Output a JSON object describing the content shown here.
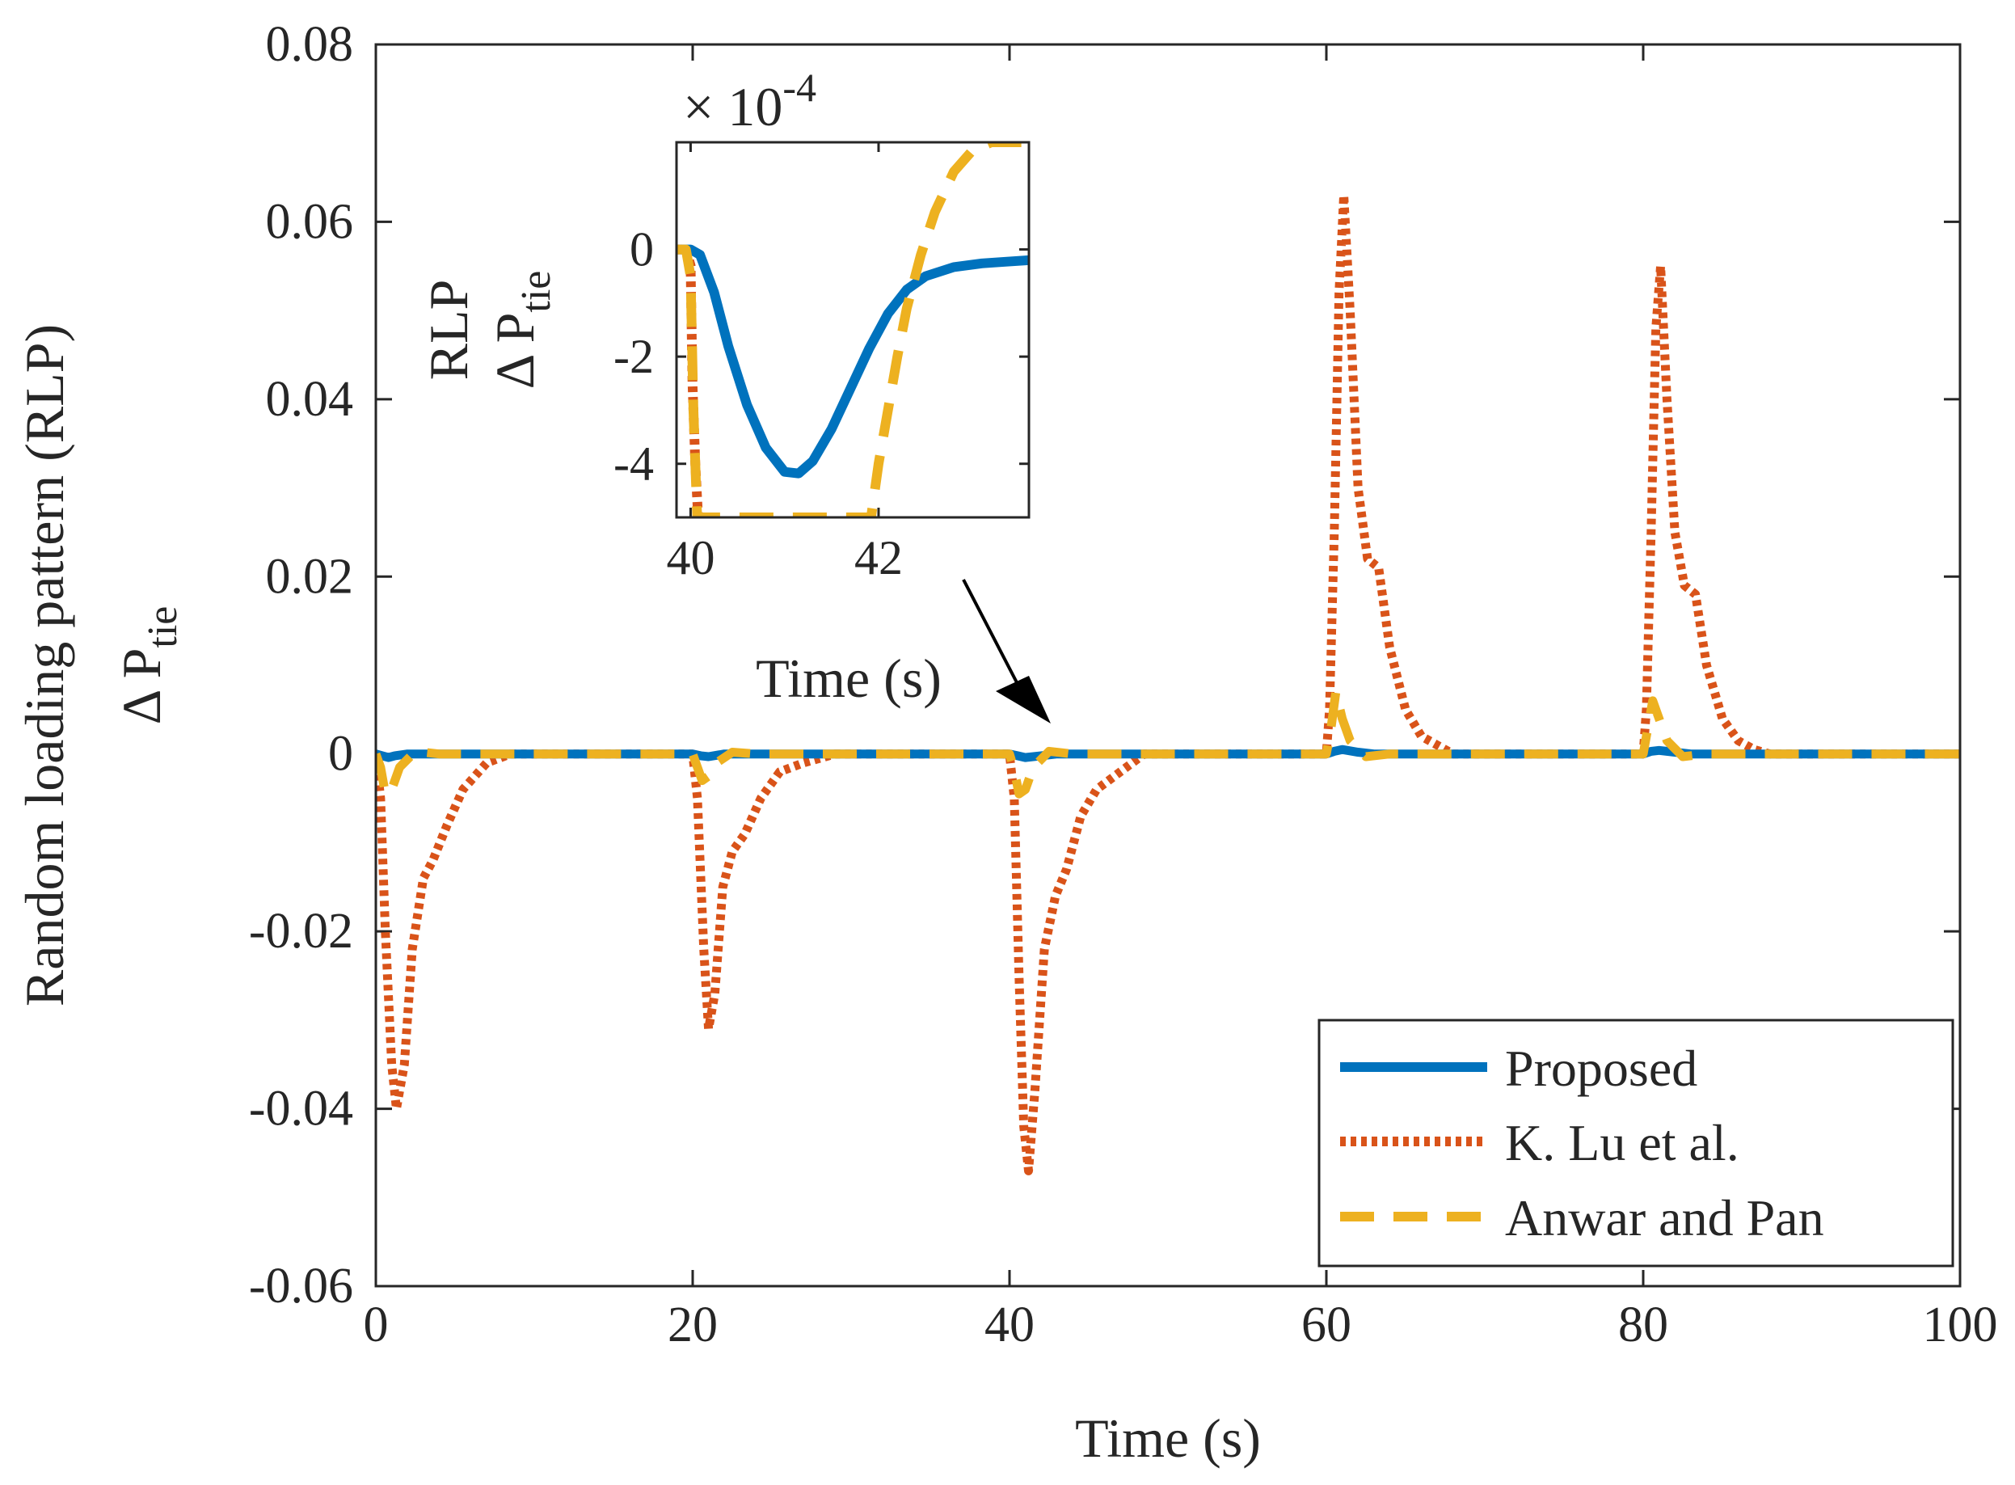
{
  "chart_data": [
    {
      "id": "main",
      "type": "line",
      "title": "",
      "xlabel": "Time (s)",
      "ylabel_line1": "Random loading pattern (RLP)",
      "ylabel_line2": "Δ P",
      "ylabel_sub": "tie",
      "xlim": [
        0,
        100
      ],
      "ylim": [
        -0.06,
        0.08
      ],
      "xticks": [
        0,
        20,
        40,
        60,
        80,
        100
      ],
      "xtick_labels": [
        "0",
        "20",
        "40",
        "60",
        "80",
        "100"
      ],
      "yticks": [
        -0.06,
        -0.04,
        -0.02,
        0,
        0.02,
        0.04,
        0.06,
        0.08
      ],
      "ytick_labels": [
        "-0.06",
        "-0.04",
        "-0.02",
        "0",
        "0.02",
        "0.04",
        "0.06",
        "0.08"
      ],
      "grid": false,
      "legend": {
        "position": "bottom-right",
        "entries": [
          "Proposed",
          "K. Lu et al.",
          "Anwar and Pan"
        ]
      },
      "series": [
        {
          "name": "Proposed",
          "color": "#0072BD",
          "style": "solid",
          "x": [
            0,
            0.4,
            0.8,
            1.2,
            2,
            3,
            20,
            20.5,
            21,
            22,
            40,
            40.5,
            41,
            42,
            43,
            60,
            60.5,
            61,
            62,
            63,
            80,
            80.5,
            81,
            82,
            83,
            100
          ],
          "y": [
            0,
            -0.0002,
            -0.0004,
            -0.0002,
            0,
            0,
            0,
            -0.0002,
            -0.0003,
            0,
            0,
            -0.0002,
            -0.0004,
            -0.0002,
            0,
            0,
            0.0003,
            0.0005,
            0.0002,
            0,
            0,
            0.0003,
            0.0004,
            0.0002,
            0,
            0
          ]
        },
        {
          "name": "K. Lu et al.",
          "color": "#D95319",
          "style": "dotted",
          "x": [
            0,
            0.3,
            0.6,
            1,
            1.3,
            1.8,
            2.3,
            3,
            3.6,
            4.5,
            5.5,
            7,
            8.5,
            20,
            20.3,
            20.7,
            21,
            21.4,
            21.9,
            22.5,
            23.3,
            24.3,
            25.5,
            27,
            29,
            40,
            40.3,
            40.6,
            40.9,
            41.2,
            41.6,
            42.2,
            42.9,
            43.6,
            44.5,
            45.5,
            47,
            48.5,
            50,
            60,
            60.2,
            60.5,
            60.8,
            61.1,
            61.5,
            62,
            62.6,
            63.3,
            64,
            65,
            66,
            67,
            68,
            80,
            80.2,
            80.5,
            80.8,
            81.1,
            81.5,
            82,
            82.6,
            83.3,
            84,
            85,
            86,
            87,
            88,
            100
          ],
          "y": [
            0,
            -0.005,
            -0.02,
            -0.035,
            -0.04,
            -0.035,
            -0.022,
            -0.014,
            -0.012,
            -0.008,
            -0.004,
            -0.001,
            0,
            0,
            -0.005,
            -0.022,
            -0.031,
            -0.027,
            -0.015,
            -0.011,
            -0.009,
            -0.005,
            -0.002,
            -0.001,
            0,
            0,
            -0.005,
            -0.025,
            -0.042,
            -0.047,
            -0.038,
            -0.022,
            -0.016,
            -0.013,
            -0.007,
            -0.004,
            -0.002,
            0,
            0,
            0,
            0.005,
            0.025,
            0.052,
            0.063,
            0.05,
            0.03,
            0.022,
            0.021,
            0.012,
            0.005,
            0.002,
            0.001,
            0,
            0,
            0.005,
            0.025,
            0.048,
            0.055,
            0.04,
            0.025,
            0.019,
            0.018,
            0.01,
            0.004,
            0.0015,
            0.0005,
            0,
            0
          ]
        },
        {
          "name": "Anwar and Pan",
          "color": "#EDB120",
          "style": "dashed",
          "x": [
            0,
            0.3,
            0.6,
            1,
            1.5,
            2.5,
            4,
            20,
            20.3,
            20.6,
            21,
            21.5,
            22.5,
            24,
            40,
            40.3,
            40.6,
            41,
            41.5,
            42.5,
            44,
            60,
            60.3,
            60.6,
            61,
            61.5,
            62.5,
            64,
            80,
            80.3,
            80.6,
            81,
            81.5,
            82.5,
            84,
            100
          ],
          "y": [
            0,
            -0.0015,
            -0.0045,
            -0.004,
            -0.0015,
            0.0003,
            0,
            0,
            -0.0015,
            -0.003,
            -0.0025,
            -0.001,
            0.0002,
            0,
            0,
            -0.0018,
            -0.0045,
            -0.004,
            -0.0015,
            0.0003,
            0,
            0,
            0.003,
            0.007,
            0.004,
            0.0015,
            -0.0003,
            0,
            0,
            0.003,
            0.006,
            0.004,
            0.0015,
            -0.0003,
            0,
            0
          ]
        }
      ]
    },
    {
      "id": "inset",
      "type": "line",
      "xlabel": "Time (s)",
      "ylabel_line1": "RLP",
      "ylabel_line2": "Δ P",
      "ylabel_sub": "tie",
      "exponent_label": "× 10",
      "exponent_power": "-4",
      "xlim": [
        39.85,
        43.6
      ],
      "ylim": [
        -5,
        2
      ],
      "xticks": [
        40,
        42
      ],
      "xtick_labels": [
        "40",
        "42"
      ],
      "yticks": [
        -4,
        -2,
        0
      ],
      "ytick_labels": [
        "-4",
        "-2",
        "0"
      ],
      "series": [
        {
          "name": "Proposed",
          "color": "#0072BD",
          "style": "solid",
          "x": [
            39.85,
            40,
            40.1,
            40.25,
            40.4,
            40.6,
            40.8,
            41,
            41.15,
            41.3,
            41.5,
            41.7,
            41.9,
            42.1,
            42.3,
            42.5,
            42.8,
            43.1,
            43.35,
            43.6
          ],
          "y": [
            0,
            0,
            -0.1,
            -0.8,
            -1.8,
            -2.9,
            -3.7,
            -4.15,
            -4.18,
            -3.95,
            -3.35,
            -2.6,
            -1.85,
            -1.2,
            -0.75,
            -0.5,
            -0.33,
            -0.26,
            -0.23,
            -0.2
          ]
        },
        {
          "name": "K. Lu et al.",
          "color": "#D95319",
          "style": "dotted",
          "x": [
            39.85,
            39.95,
            40,
            40.02,
            40.05,
            40.08
          ],
          "y": [
            0,
            0,
            -0.3,
            -2.5,
            -4,
            -5
          ]
        },
        {
          "name": "Anwar and Pan",
          "color": "#EDB120",
          "style": "dashed",
          "x": [
            39.85,
            39.95,
            40,
            40.03,
            40.07,
            41.92,
            42,
            42.1,
            42.2,
            42.3,
            42.45,
            42.6,
            42.8,
            43.0,
            43.2,
            43.4,
            43.6
          ],
          "y": [
            0,
            0,
            -0.5,
            -3,
            -5,
            -5,
            -4,
            -3,
            -2,
            -1.1,
            -0.1,
            0.7,
            1.45,
            1.85,
            2,
            2,
            2
          ]
        }
      ],
      "annotation": {
        "type": "arrow",
        "from": "inset",
        "to": [
          42.5,
          0
        ],
        "points_to_axes": "main"
      }
    }
  ]
}
